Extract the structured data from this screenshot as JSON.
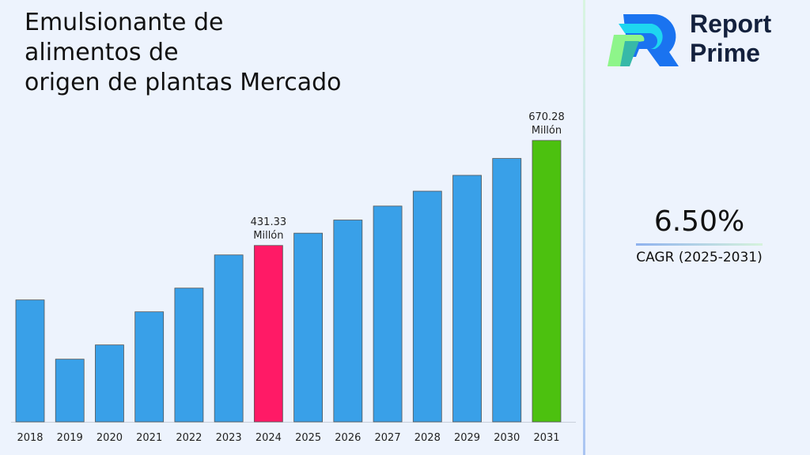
{
  "title_lines": [
    "Emulsionante de",
    "alimentos de",
    "origen de plantas Mercado"
  ],
  "brand": {
    "line1": "Report",
    "line2": "Prime"
  },
  "cagr": {
    "value": "6.50%",
    "label": "CAGR (2025-2031)"
  },
  "chart_data": {
    "type": "bar",
    "title": "Emulsionante de alimentos de origen de plantas Mercado",
    "categories": [
      "2018",
      "2019",
      "2020",
      "2021",
      "2022",
      "2023",
      "2024",
      "2025",
      "2026",
      "2027",
      "2028",
      "2029",
      "2030",
      "2031"
    ],
    "values": [
      307.4,
      172.6,
      205.0,
      280.4,
      334.3,
      409.8,
      431.33,
      459.36,
      489.22,
      521.02,
      554.89,
      590.96,
      629.37,
      670.28
    ],
    "data_labels": {
      "6": [
        "431.33",
        "Millón"
      ],
      "13": [
        "670.28",
        "Millón"
      ]
    },
    "colors": {
      "default": "#39a0e8",
      "highlight_2024": "#ff1a66",
      "highlight_2031": "#4cc10f"
    },
    "ylim": [
      30,
      700
    ],
    "grid": false,
    "xlabel": "",
    "ylabel": ""
  }
}
